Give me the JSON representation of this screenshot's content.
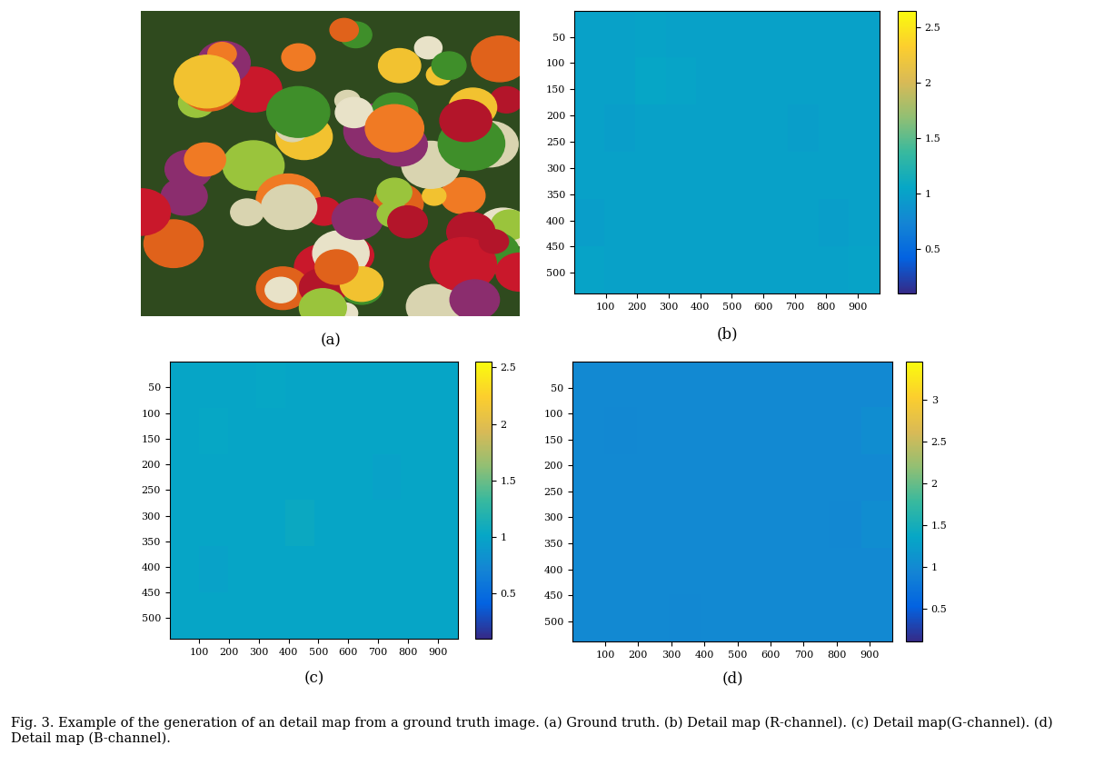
{
  "caption": "Fig. 3. Example of the generation of an detail map from a ground truth image. (a) Ground truth. (b) Detail map (R-channel). (c) Detail map(G-channel). (d) Detail map (B-channel).",
  "image_panel": {
    "label": "(a)"
  },
  "chart_data": [
    {
      "type": "heatmap",
      "label": "(b)",
      "xlim": [
        0,
        970
      ],
      "ylim": [
        540,
        0
      ],
      "xticks": [
        100,
        200,
        300,
        400,
        500,
        600,
        700,
        800,
        900
      ],
      "yticks": [
        50,
        100,
        150,
        200,
        250,
        300,
        350,
        400,
        450,
        500
      ],
      "cells": [
        [
          1.0,
          1.0,
          1.02,
          1.0,
          1.0,
          1.0,
          1.0,
          1.0,
          1.0,
          1.0
        ],
        [
          1.0,
          1.0,
          1.05,
          1.03,
          1.0,
          1.0,
          1.0,
          1.0,
          1.0,
          1.0
        ],
        [
          1.0,
          0.98,
          1.0,
          1.0,
          1.0,
          1.0,
          1.0,
          0.98,
          1.0,
          1.0
        ],
        [
          1.0,
          1.0,
          1.0,
          1.0,
          1.0,
          1.0,
          1.0,
          1.0,
          1.0,
          1.0
        ],
        [
          0.98,
          1.0,
          1.0,
          1.0,
          1.0,
          1.0,
          1.0,
          1.0,
          0.98,
          1.0
        ],
        [
          1.02,
          1.0,
          1.0,
          1.0,
          1.0,
          1.0,
          1.0,
          1.0,
          1.0,
          1.02
        ]
      ],
      "colorbar_range": [
        0.1,
        2.65
      ],
      "colorbar_ticks": [
        0.5,
        1,
        1.5,
        2,
        2.5
      ]
    },
    {
      "type": "heatmap",
      "label": "(c)",
      "xlim": [
        0,
        970
      ],
      "ylim": [
        540,
        0
      ],
      "xticks": [
        100,
        200,
        300,
        400,
        500,
        600,
        700,
        800,
        900
      ],
      "yticks": [
        50,
        100,
        150,
        200,
        250,
        300,
        350,
        400,
        450,
        500
      ],
      "cells": [
        [
          1.0,
          1.0,
          1.0,
          1.02,
          1.0,
          1.0,
          1.0,
          1.0,
          1.0,
          1.0
        ],
        [
          1.0,
          1.02,
          1.0,
          1.0,
          1.0,
          1.0,
          1.0,
          1.0,
          1.0,
          1.0
        ],
        [
          1.0,
          1.0,
          1.0,
          1.0,
          1.0,
          1.0,
          1.0,
          0.98,
          1.0,
          1.0
        ],
        [
          1.0,
          1.0,
          1.0,
          1.0,
          1.05,
          1.0,
          1.0,
          1.0,
          1.0,
          1.0
        ],
        [
          1.0,
          0.98,
          1.0,
          1.0,
          1.0,
          1.0,
          1.0,
          1.0,
          1.0,
          1.0
        ],
        [
          1.0,
          1.0,
          1.0,
          1.0,
          1.0,
          1.0,
          1.0,
          1.0,
          1.0,
          1.0
        ]
      ],
      "colorbar_range": [
        0.1,
        2.55
      ],
      "colorbar_ticks": [
        0.5,
        1,
        1.5,
        2,
        2.5
      ]
    },
    {
      "type": "heatmap",
      "label": "(d)",
      "xlim": [
        0,
        970
      ],
      "ylim": [
        540,
        0
      ],
      "xticks": [
        100,
        200,
        300,
        400,
        500,
        600,
        700,
        800,
        900
      ],
      "yticks": [
        50,
        100,
        150,
        200,
        250,
        300,
        350,
        400,
        450,
        500
      ],
      "cells": [
        [
          1.0,
          1.0,
          1.0,
          1.0,
          1.0,
          1.0,
          1.0,
          1.0,
          1.0,
          1.0
        ],
        [
          1.0,
          0.98,
          1.0,
          1.0,
          1.0,
          1.0,
          1.0,
          1.0,
          1.0,
          1.05
        ],
        [
          1.0,
          1.0,
          1.0,
          1.0,
          1.0,
          1.0,
          1.0,
          1.0,
          1.0,
          1.0
        ],
        [
          1.0,
          1.0,
          1.0,
          1.0,
          1.0,
          1.0,
          1.0,
          1.0,
          0.98,
          1.05
        ],
        [
          1.0,
          1.0,
          1.0,
          1.0,
          1.0,
          1.0,
          1.0,
          1.0,
          1.0,
          1.0
        ],
        [
          1.0,
          1.0,
          1.0,
          0.98,
          1.0,
          1.0,
          1.0,
          1.0,
          1.0,
          1.0
        ]
      ],
      "colorbar_range": [
        0.1,
        3.45
      ],
      "colorbar_ticks": [
        0.5,
        1,
        1.5,
        2,
        2.5,
        3
      ]
    }
  ]
}
